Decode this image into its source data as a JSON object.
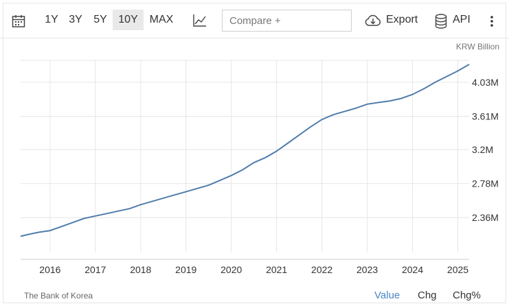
{
  "toolbar": {
    "ranges": [
      "1Y",
      "3Y",
      "5Y",
      "10Y",
      "MAX"
    ],
    "active_range": "10Y",
    "compare_placeholder": "Compare +",
    "export_label": "Export",
    "api_label": "API"
  },
  "footer": {
    "source": "The Bank of Korea",
    "modes": [
      "Value",
      "Chg",
      "Chg%"
    ],
    "active_mode": "Value"
  },
  "colors": {
    "line": "#4f7cac",
    "active_mode": "#4a86c8",
    "grid": "#e6e6e6"
  },
  "chart_data": {
    "type": "line",
    "title": "",
    "unit_label": "KRW Billion",
    "x_range": [
      2015.35,
      2025.25
    ],
    "ylim": [
      1.93,
      4.3
    ],
    "y_ticks": [
      {
        "value": 2.36,
        "label": "2.36M"
      },
      {
        "value": 2.78,
        "label": "2.78M"
      },
      {
        "value": 3.2,
        "label": "3.2M"
      },
      {
        "value": 3.61,
        "label": "3.61M"
      },
      {
        "value": 4.03,
        "label": "4.03M"
      }
    ],
    "x_ticks": [
      {
        "value": 2016,
        "label": "2016"
      },
      {
        "value": 2017,
        "label": "2017"
      },
      {
        "value": 2018,
        "label": "2018"
      },
      {
        "value": 2019,
        "label": "2019"
      },
      {
        "value": 2020,
        "label": "2020"
      },
      {
        "value": 2021,
        "label": "2021"
      },
      {
        "value": 2022,
        "label": "2022"
      },
      {
        "value": 2023,
        "label": "2023"
      },
      {
        "value": 2024,
        "label": "2024"
      },
      {
        "value": 2025,
        "label": "2025"
      }
    ],
    "grid": true,
    "series": [
      {
        "name": "",
        "x": [
          2015.35,
          2015.5,
          2015.75,
          2016.0,
          2016.25,
          2016.5,
          2016.75,
          2017.0,
          2017.25,
          2017.5,
          2017.75,
          2018.0,
          2018.25,
          2018.5,
          2018.75,
          2019.0,
          2019.25,
          2019.5,
          2019.75,
          2020.0,
          2020.25,
          2020.5,
          2020.75,
          2021.0,
          2021.25,
          2021.5,
          2021.75,
          2022.0,
          2022.25,
          2022.5,
          2022.75,
          2023.0,
          2023.25,
          2023.5,
          2023.75,
          2024.0,
          2024.25,
          2024.5,
          2024.75,
          2025.0,
          2025.25
        ],
        "values": [
          2.13,
          2.15,
          2.18,
          2.2,
          2.25,
          2.3,
          2.35,
          2.38,
          2.41,
          2.44,
          2.47,
          2.52,
          2.56,
          2.6,
          2.64,
          2.68,
          2.72,
          2.76,
          2.82,
          2.88,
          2.95,
          3.04,
          3.1,
          3.18,
          3.28,
          3.38,
          3.48,
          3.57,
          3.63,
          3.67,
          3.71,
          3.76,
          3.78,
          3.8,
          3.83,
          3.88,
          3.95,
          4.03,
          4.1,
          4.17,
          4.25
        ]
      }
    ]
  }
}
